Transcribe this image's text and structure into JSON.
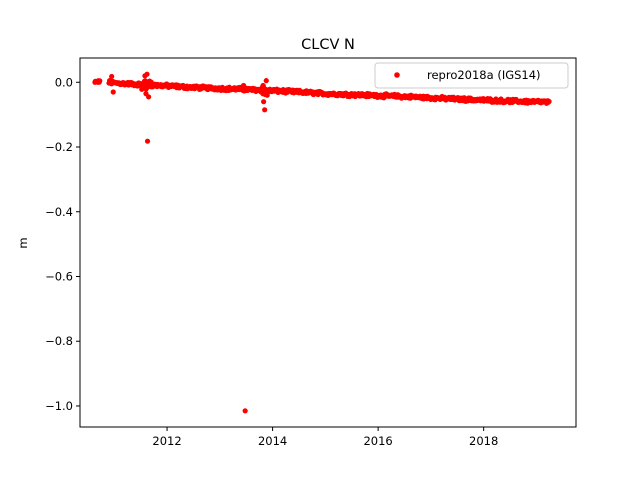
{
  "chart_data": {
    "type": "scatter",
    "title": "CLCV N",
    "xlabel": "",
    "ylabel": "m",
    "xlim": [
      2010.35,
      2019.75
    ],
    "ylim": [
      -1.065,
      0.075
    ],
    "xticks": [
      2012,
      2014,
      2016,
      2018
    ],
    "yticks": [
      0.0,
      -0.2,
      -0.4,
      -0.6,
      -0.8,
      -1.0
    ],
    "ytick_labels": [
      "0.0",
      "−0.2",
      "−0.4",
      "−0.6",
      "−0.8",
      "−1.0"
    ],
    "grid": false,
    "legend_position": "top-right",
    "series": [
      {
        "name": "repro2018a (IGS14)",
        "color": "#ff0000",
        "marker": "dot",
        "trend": [
          [
            2010.62,
            0.0
          ],
          [
            2010.75,
            0.003
          ],
          [
            2011.0,
            -0.002
          ],
          [
            2011.5,
            -0.007
          ],
          [
            2012.0,
            -0.011
          ],
          [
            2012.5,
            -0.016
          ],
          [
            2013.0,
            -0.019
          ],
          [
            2013.5,
            -0.022
          ],
          [
            2014.0,
            -0.026
          ],
          [
            2014.5,
            -0.03
          ],
          [
            2015.0,
            -0.035
          ],
          [
            2015.5,
            -0.038
          ],
          [
            2016.0,
            -0.041
          ],
          [
            2016.5,
            -0.044
          ],
          [
            2017.0,
            -0.048
          ],
          [
            2017.5,
            -0.052
          ],
          [
            2018.0,
            -0.055
          ],
          [
            2018.5,
            -0.058
          ],
          [
            2019.0,
            -0.06
          ],
          [
            2019.25,
            -0.062
          ]
        ],
        "outliers": [
          [
            2010.95,
            0.018
          ],
          [
            2010.98,
            -0.03
          ],
          [
            2011.58,
            0.02
          ],
          [
            2011.62,
            0.025
          ],
          [
            2011.6,
            -0.035
          ],
          [
            2011.65,
            -0.045
          ],
          [
            2011.63,
            -0.182
          ],
          [
            2013.48,
            -1.015
          ],
          [
            2013.45,
            -0.01
          ],
          [
            2013.83,
            -0.06
          ],
          [
            2013.85,
            -0.085
          ],
          [
            2013.82,
            -0.01
          ],
          [
            2013.88,
            0.005
          ]
        ]
      }
    ]
  }
}
